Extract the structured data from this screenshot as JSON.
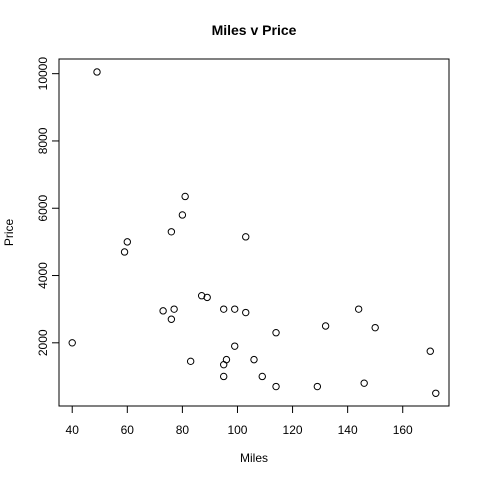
{
  "chart_data": {
    "type": "scatter",
    "title": "Miles v Price",
    "xlabel": "Miles",
    "ylabel": "Price",
    "xlim": [
      35.2,
      176.8
    ],
    "ylim": [
      121.8,
      10436
    ],
    "xticks": [
      40,
      60,
      80,
      100,
      120,
      140,
      160
    ],
    "yticks": [
      2000,
      4000,
      6000,
      8000,
      10000
    ],
    "grid": false,
    "legend": "none",
    "marker": "open-circle",
    "points": [
      {
        "x": 40,
        "y": 2000
      },
      {
        "x": 49,
        "y": 10050
      },
      {
        "x": 59,
        "y": 4700
      },
      {
        "x": 60,
        "y": 5000
      },
      {
        "x": 73,
        "y": 2950
      },
      {
        "x": 76,
        "y": 2700
      },
      {
        "x": 76,
        "y": 5300
      },
      {
        "x": 77,
        "y": 3000
      },
      {
        "x": 80,
        "y": 5800
      },
      {
        "x": 81,
        "y": 6350
      },
      {
        "x": 83,
        "y": 1450
      },
      {
        "x": 87,
        "y": 3400
      },
      {
        "x": 89,
        "y": 3350
      },
      {
        "x": 95,
        "y": 3000
      },
      {
        "x": 95,
        "y": 1350
      },
      {
        "x": 95,
        "y": 1000
      },
      {
        "x": 96,
        "y": 1500
      },
      {
        "x": 99,
        "y": 3000
      },
      {
        "x": 99,
        "y": 1900
      },
      {
        "x": 103,
        "y": 5150
      },
      {
        "x": 103,
        "y": 2900
      },
      {
        "x": 106,
        "y": 1500
      },
      {
        "x": 109,
        "y": 1000
      },
      {
        "x": 114,
        "y": 2300
      },
      {
        "x": 114,
        "y": 700
      },
      {
        "x": 129,
        "y": 700
      },
      {
        "x": 132,
        "y": 2500
      },
      {
        "x": 144,
        "y": 3000
      },
      {
        "x": 146,
        "y": 800
      },
      {
        "x": 150,
        "y": 2450
      },
      {
        "x": 170,
        "y": 1750
      },
      {
        "x": 172,
        "y": 500
      }
    ]
  }
}
